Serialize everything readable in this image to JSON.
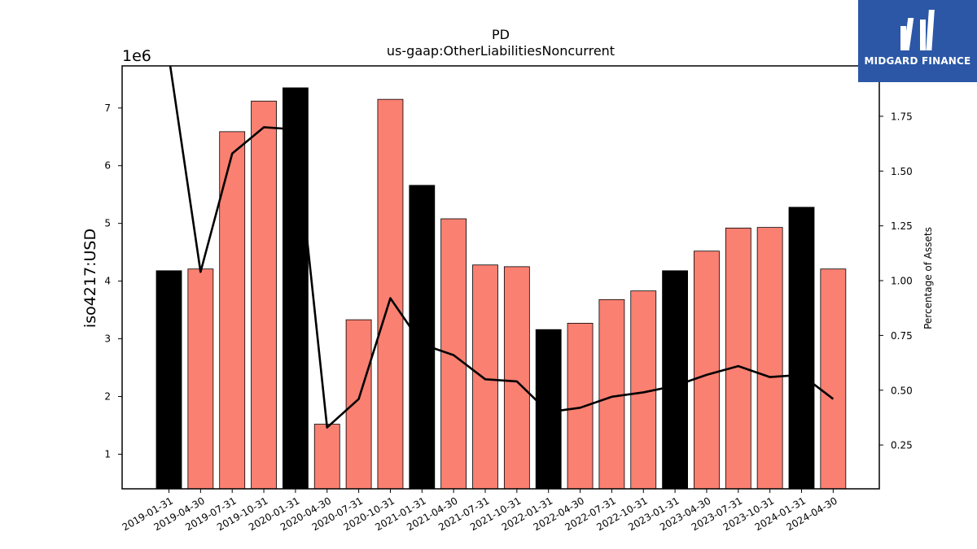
{
  "chart_data": {
    "type": "bar",
    "title": "PD",
    "subtitle": "us-gaap:OtherLiabilitiesNoncurrent",
    "ylabel": "iso4217:USD",
    "y_offset_label": "1e6",
    "y2label": "Percentage of Assets",
    "ylim": [
      0.4,
      7.73
    ],
    "y2lim": [
      0.05,
      1.98
    ],
    "yticks": [
      1,
      2,
      3,
      4,
      5,
      6,
      7
    ],
    "y2ticks": [
      0.25,
      0.5,
      0.75,
      1.0,
      1.25,
      1.5,
      1.75
    ],
    "y2tick_labels": [
      "0.25",
      "0.50",
      "0.75",
      "1.00",
      "1.25",
      "1.50",
      "1.75"
    ],
    "grid": false,
    "categories": [
      "2019-01-31",
      "2019-04-30",
      "2019-07-31",
      "2019-10-31",
      "2020-01-31",
      "2020-04-30",
      "2020-07-31",
      "2020-10-31",
      "2021-01-31",
      "2021-04-30",
      "2021-07-31",
      "2021-10-31",
      "2022-01-31",
      "2022-04-30",
      "2022-07-31",
      "2022-10-31",
      "2023-01-31",
      "2023-04-30",
      "2023-07-31",
      "2023-10-31",
      "2024-01-31",
      "2024-04-30"
    ],
    "series": [
      {
        "kind": "bar",
        "values": [
          4.18,
          4.21,
          6.59,
          7.12,
          7.35,
          1.52,
          3.33,
          7.15,
          5.66,
          5.08,
          4.28,
          4.25,
          3.16,
          3.27,
          3.68,
          3.83,
          4.18,
          4.52,
          4.92,
          4.93,
          5.28,
          4.21
        ],
        "fiscal_year_end": [
          true,
          false,
          false,
          false,
          true,
          false,
          false,
          false,
          true,
          false,
          false,
          false,
          true,
          false,
          false,
          false,
          true,
          false,
          false,
          false,
          true,
          false
        ]
      },
      {
        "kind": "line",
        "axis": "right",
        "values": [
          2.02,
          1.04,
          1.58,
          1.7,
          1.69,
          0.33,
          0.46,
          0.92,
          0.71,
          0.66,
          0.55,
          0.54,
          0.4,
          0.42,
          0.47,
          0.49,
          0.52,
          0.57,
          0.61,
          0.56,
          0.57,
          0.46
        ]
      }
    ],
    "colors": {
      "bar": "#fa8072",
      "bar_highlight": "#000000",
      "line": "#000000"
    }
  },
  "logo": {
    "text": "MIDGARD FINANCE",
    "background": "#2b57a6"
  }
}
